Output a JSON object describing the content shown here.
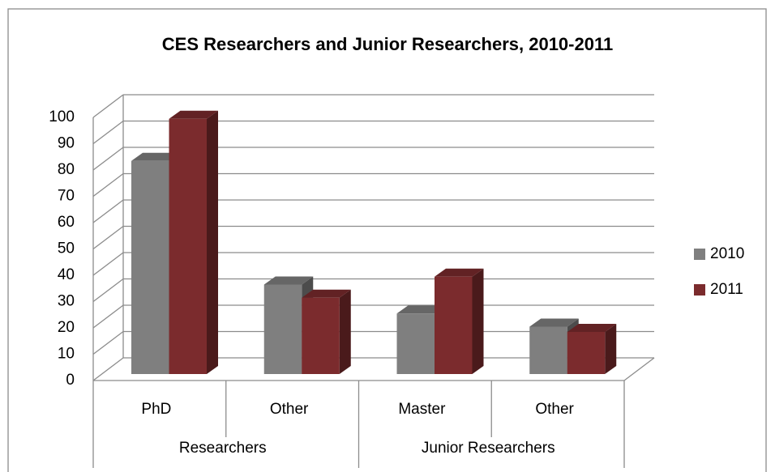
{
  "chart_data": {
    "type": "bar3d",
    "title": "CES Researchers and Junior Researchers, 2010-2011",
    "categories": [
      "PhD",
      "Other",
      "Master",
      "Other"
    ],
    "category_groups": [
      {
        "name": "Researchers"
      },
      {
        "name": "Junior Researchers"
      }
    ],
    "series": [
      {
        "name": "2010",
        "color": "#7f7f7f",
        "values": [
          81,
          34,
          23,
          18
        ]
      },
      {
        "name": "2011",
        "color": "#7b2b2d",
        "values": [
          97,
          29,
          37,
          16
        ]
      }
    ],
    "ylim": [
      0,
      100
    ],
    "yticks": [
      0,
      10,
      20,
      30,
      40,
      50,
      60,
      70,
      80,
      90,
      100
    ],
    "grid": true,
    "legend": "right"
  }
}
